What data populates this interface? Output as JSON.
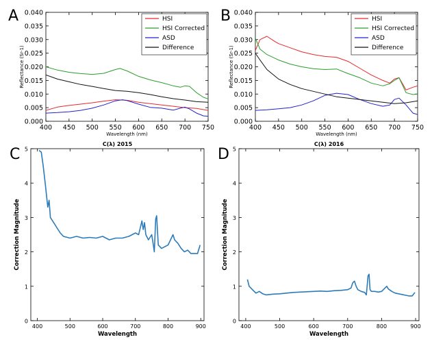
{
  "panel_labels": [
    "A",
    "B",
    "C",
    "D"
  ],
  "chart_data": [
    {
      "id": "A",
      "type": "line",
      "xlabel": "Wavelength (nm)",
      "ylabel": "Reflectance (Sr-1)",
      "xlim": [
        400,
        750
      ],
      "ylim": [
        0.0,
        0.04
      ],
      "xticks": [
        400,
        450,
        500,
        550,
        600,
        650,
        700,
        750
      ],
      "yticks": [
        "0.000",
        "0.005",
        "0.010",
        "0.015",
        "0.020",
        "0.025",
        "0.030",
        "0.035",
        "0.040"
      ],
      "legend_position": "top-right",
      "series": [
        {
          "name": "HSI",
          "color": "#e8272b",
          "x": [
            400,
            425,
            450,
            475,
            500,
            525,
            550,
            575,
            600,
            625,
            650,
            675,
            700,
            725,
            750
          ],
          "y": [
            0.004,
            0.0052,
            0.0058,
            0.0063,
            0.0068,
            0.0074,
            0.0079,
            0.0077,
            0.007,
            0.0065,
            0.006,
            0.0055,
            0.005,
            0.0047,
            0.004
          ]
        },
        {
          "name": "HSI Corrected",
          "color": "#2a9d2a",
          "x": [
            400,
            425,
            450,
            475,
            500,
            525,
            550,
            560,
            575,
            600,
            625,
            650,
            675,
            690,
            700,
            710,
            725,
            740,
            750
          ],
          "y": [
            0.02,
            0.0188,
            0.018,
            0.0175,
            0.0172,
            0.0176,
            0.019,
            0.0194,
            0.0185,
            0.0165,
            0.0152,
            0.0142,
            0.013,
            0.0125,
            0.013,
            0.0128,
            0.0105,
            0.0088,
            0.0082
          ]
        },
        {
          "name": "ASD",
          "color": "#2020d0",
          "x": [
            400,
            425,
            450,
            475,
            500,
            525,
            550,
            565,
            575,
            600,
            625,
            650,
            675,
            690,
            700,
            710,
            725,
            740,
            750
          ],
          "y": [
            0.003,
            0.0032,
            0.0035,
            0.004,
            0.0048,
            0.006,
            0.0075,
            0.0079,
            0.0076,
            0.0063,
            0.0051,
            0.0048,
            0.0041,
            0.0048,
            0.0052,
            0.0045,
            0.003,
            0.002,
            0.0018
          ]
        },
        {
          "name": "Difference",
          "color": "#111111",
          "x": [
            400,
            425,
            450,
            475,
            500,
            525,
            550,
            575,
            600,
            625,
            650,
            675,
            700,
            725,
            750
          ],
          "y": [
            0.017,
            0.0155,
            0.0145,
            0.0135,
            0.0128,
            0.012,
            0.0113,
            0.011,
            0.0105,
            0.0098,
            0.009,
            0.0083,
            0.0078,
            0.0072,
            0.007
          ]
        }
      ]
    },
    {
      "id": "B",
      "type": "line",
      "xlabel": "Wavelength (nm)",
      "ylabel": "Reflectance (Sr-1)",
      "xlim": [
        400,
        750
      ],
      "ylim": [
        0.0,
        0.04
      ],
      "xticks": [
        400,
        450,
        500,
        550,
        600,
        650,
        700,
        750
      ],
      "yticks": [
        "0.000",
        "0.005",
        "0.010",
        "0.015",
        "0.020",
        "0.025",
        "0.030",
        "0.035",
        "0.040"
      ],
      "legend_position": "top-right",
      "series": [
        {
          "name": "HSI",
          "color": "#e8272b",
          "x": [
            400,
            410,
            425,
            440,
            450,
            475,
            500,
            525,
            550,
            575,
            600,
            625,
            650,
            675,
            690,
            700,
            710,
            725,
            740,
            750
          ],
          "y": [
            0.026,
            0.03,
            0.0312,
            0.0295,
            0.0285,
            0.027,
            0.0255,
            0.0245,
            0.0238,
            0.0235,
            0.022,
            0.0195,
            0.017,
            0.015,
            0.014,
            0.0155,
            0.016,
            0.0115,
            0.0125,
            0.013
          ]
        },
        {
          "name": "HSI Corrected",
          "color": "#2a9d2a",
          "x": [
            400,
            410,
            425,
            450,
            475,
            500,
            525,
            550,
            575,
            600,
            625,
            650,
            675,
            690,
            700,
            710,
            725,
            740,
            750
          ],
          "y": [
            0.0305,
            0.0265,
            0.0245,
            0.0225,
            0.021,
            0.02,
            0.0193,
            0.019,
            0.0192,
            0.0175,
            0.016,
            0.014,
            0.013,
            0.0138,
            0.015,
            0.016,
            0.0105,
            0.0098,
            0.01
          ]
        },
        {
          "name": "ASD",
          "color": "#2020d0",
          "x": [
            400,
            425,
            450,
            475,
            500,
            525,
            550,
            575,
            600,
            625,
            650,
            675,
            690,
            700,
            710,
            725,
            740,
            750
          ],
          "y": [
            0.004,
            0.0042,
            0.0046,
            0.005,
            0.006,
            0.0075,
            0.0095,
            0.0103,
            0.0098,
            0.008,
            0.0065,
            0.0055,
            0.006,
            0.008,
            0.0085,
            0.006,
            0.003,
            0.0025
          ]
        },
        {
          "name": "Difference",
          "color": "#111111",
          "x": [
            400,
            410,
            425,
            450,
            475,
            500,
            525,
            550,
            575,
            600,
            625,
            650,
            675,
            700,
            725,
            750
          ],
          "y": [
            0.025,
            0.0225,
            0.019,
            0.0155,
            0.0135,
            0.012,
            0.011,
            0.01,
            0.009,
            0.0085,
            0.008,
            0.0075,
            0.007,
            0.0065,
            0.0068,
            0.0075
          ]
        }
      ]
    },
    {
      "id": "C",
      "type": "line",
      "title": "C(λ) 2015",
      "xlabel": "Wavelength",
      "ylabel": "Correction Magnitude",
      "xlim": [
        380,
        910
      ],
      "ylim": [
        0,
        5
      ],
      "xticks": [
        400,
        500,
        600,
        700,
        800,
        900
      ],
      "yticks": [
        0,
        1,
        2,
        3,
        4,
        5
      ],
      "series": [
        {
          "name": "",
          "color": "#2b7bba",
          "x": [
            405,
            412,
            418,
            424,
            428,
            432,
            436,
            440,
            450,
            460,
            470,
            480,
            500,
            520,
            540,
            560,
            580,
            600,
            620,
            640,
            660,
            680,
            700,
            710,
            715,
            720,
            724,
            728,
            732,
            740,
            750,
            755,
            758,
            762,
            765,
            770,
            780,
            790,
            800,
            810,
            815,
            820,
            830,
            840,
            850,
            860,
            870,
            880,
            890,
            895,
            898
          ],
          "y": [
            4.95,
            4.9,
            4.5,
            4.0,
            3.65,
            3.3,
            3.5,
            3.0,
            2.85,
            2.7,
            2.55,
            2.45,
            2.4,
            2.45,
            2.4,
            2.42,
            2.4,
            2.45,
            2.35,
            2.4,
            2.4,
            2.45,
            2.55,
            2.5,
            2.7,
            2.9,
            2.65,
            2.85,
            2.5,
            2.35,
            2.5,
            2.2,
            2.0,
            2.95,
            3.05,
            2.2,
            2.1,
            2.15,
            2.2,
            2.4,
            2.5,
            2.35,
            2.25,
            2.1,
            2.0,
            2.05,
            1.95,
            1.95,
            1.95,
            2.1,
            2.2
          ]
        }
      ]
    },
    {
      "id": "D",
      "type": "line",
      "title": "C(λ) 2016",
      "xlabel": "Wavelength",
      "ylabel": "Correction Magnitude",
      "xlim": [
        380,
        910
      ],
      "ylim": [
        0,
        5
      ],
      "xticks": [
        400,
        500,
        600,
        700,
        800,
        900
      ],
      "yticks": [
        0,
        1,
        2,
        3,
        4,
        5
      ],
      "series": [
        {
          "name": "",
          "color": "#2b7bba",
          "x": [
            405,
            410,
            420,
            430,
            440,
            450,
            460,
            480,
            500,
            520,
            540,
            560,
            580,
            600,
            620,
            640,
            660,
            680,
            700,
            710,
            715,
            720,
            725,
            730,
            740,
            750,
            755,
            760,
            763,
            766,
            770,
            780,
            790,
            800,
            810,
            815,
            820,
            830,
            840,
            850,
            860,
            870,
            880,
            890,
            898
          ],
          "y": [
            1.2,
            1.0,
            0.9,
            0.8,
            0.85,
            0.78,
            0.75,
            0.77,
            0.78,
            0.8,
            0.82,
            0.83,
            0.84,
            0.85,
            0.86,
            0.85,
            0.87,
            0.88,
            0.9,
            0.95,
            1.1,
            1.15,
            1.0,
            0.9,
            0.85,
            0.82,
            0.75,
            1.3,
            1.35,
            0.9,
            0.85,
            0.85,
            0.83,
            0.85,
            0.95,
            1.0,
            0.92,
            0.85,
            0.8,
            0.78,
            0.76,
            0.74,
            0.72,
            0.72,
            0.82
          ]
        }
      ]
    }
  ]
}
